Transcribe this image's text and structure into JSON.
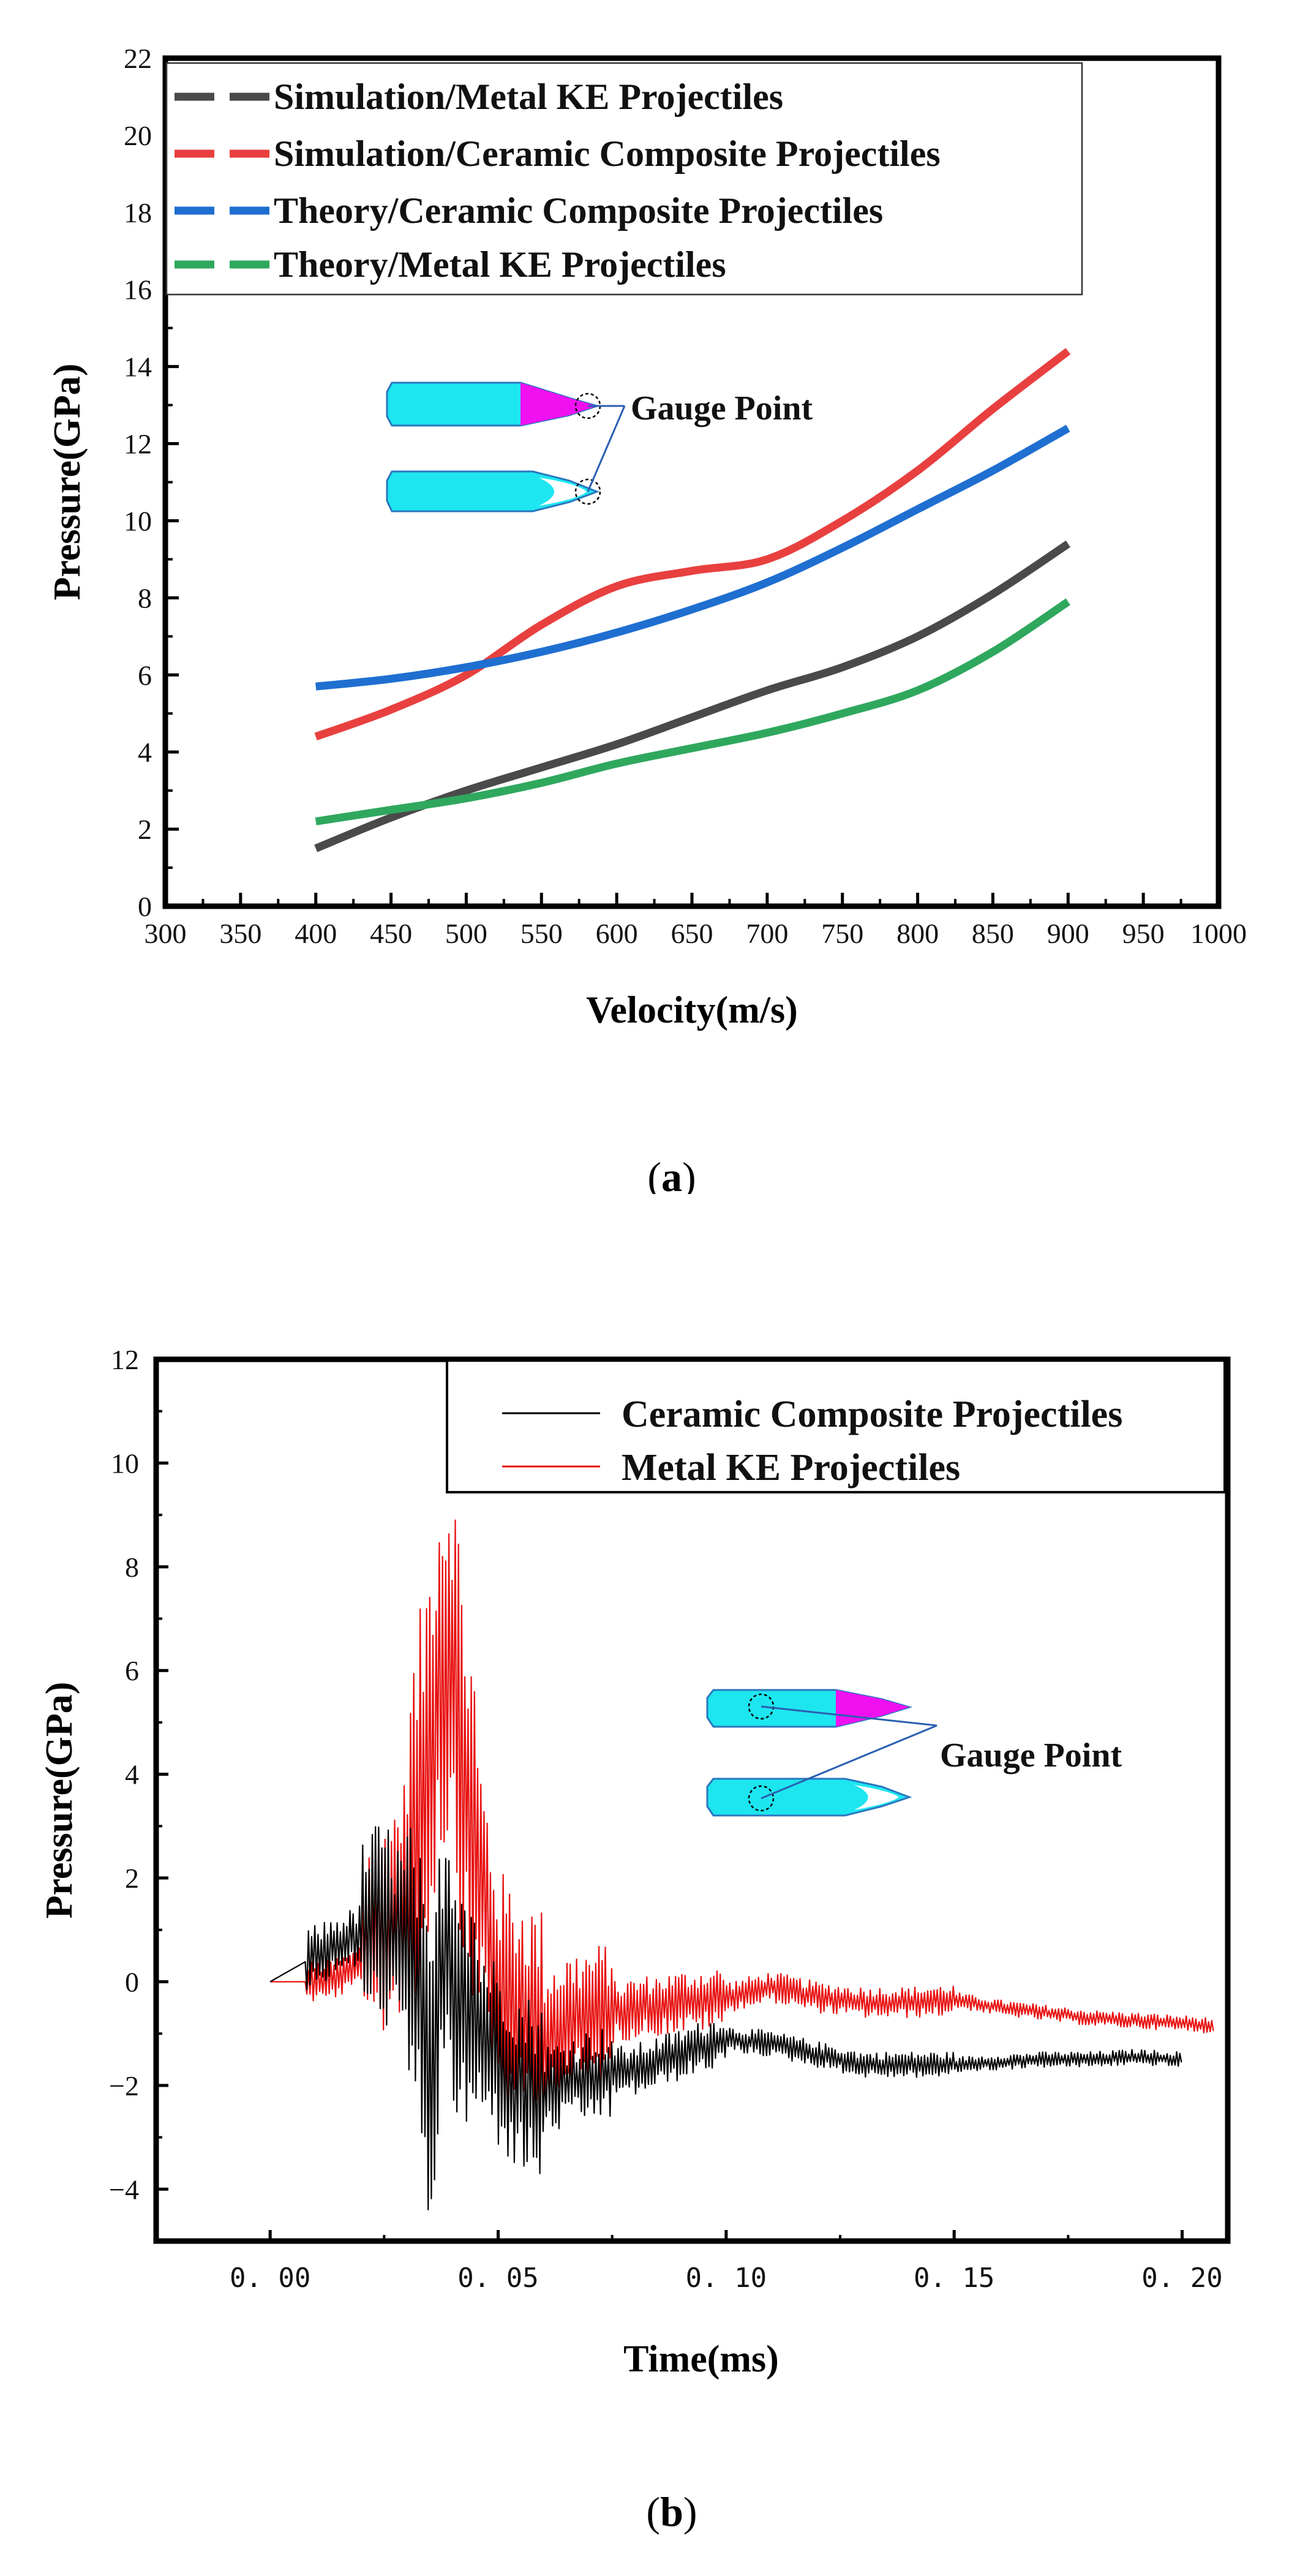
{
  "chart_data": [
    {
      "type": "line",
      "panel_label": "a",
      "title": "",
      "xlabel": "Velocity(m/s)",
      "ylabel": "Pressure(GPa)",
      "xlim": [
        300,
        1000
      ],
      "ylim": [
        0,
        22
      ],
      "xticks": [
        "300",
        "350",
        "400",
        "450",
        "500",
        "550",
        "600",
        "650",
        "700",
        "750",
        "800",
        "850",
        "900",
        "950",
        "1000"
      ],
      "yticks": [
        "0",
        "2",
        "4",
        "6",
        "8",
        "10",
        "12",
        "14",
        "16",
        "18",
        "20",
        "22"
      ],
      "annotation": "Gauge Point",
      "series": [
        {
          "name": "Simulation/Metal KE Projectiles",
          "color": "#4a4a4a",
          "x": [
            400,
            450,
            500,
            550,
            600,
            650,
            700,
            750,
            800,
            850,
            900
          ],
          "y": [
            1.5,
            2.3,
            3.0,
            3.6,
            4.2,
            4.9,
            5.6,
            6.2,
            7.0,
            8.1,
            9.4
          ]
        },
        {
          "name": "Simulation/Ceramic Composite Projectiles",
          "color": "#e8403f",
          "x": [
            400,
            450,
            500,
            550,
            600,
            650,
            700,
            750,
            800,
            850,
            900
          ],
          "y": [
            4.4,
            5.1,
            6.0,
            7.3,
            8.3,
            8.7,
            9.0,
            10.0,
            11.3,
            12.9,
            14.4
          ]
        },
        {
          "name": "Theory/Ceramic Composite Projectiles",
          "color": "#1f6fd1",
          "x": [
            400,
            450,
            500,
            550,
            600,
            650,
            700,
            750,
            800,
            850,
            900
          ],
          "y": [
            5.7,
            5.9,
            6.2,
            6.6,
            7.1,
            7.7,
            8.4,
            9.3,
            10.3,
            11.3,
            12.4
          ]
        },
        {
          "name": "Theory/Metal KE Projectiles",
          "color": "#2fa85e",
          "x": [
            400,
            450,
            500,
            550,
            600,
            650,
            700,
            750,
            800,
            850,
            900
          ],
          "y": [
            2.2,
            2.5,
            2.8,
            3.2,
            3.7,
            4.1,
            4.5,
            5.0,
            5.6,
            6.6,
            7.9
          ]
        }
      ]
    },
    {
      "type": "line",
      "panel_label": "b",
      "title": "",
      "xlabel": "Time(ms)",
      "ylabel": "Pressure(GPa)",
      "xlim": [
        -0.025,
        0.21
      ],
      "ylim": [
        -5,
        12
      ],
      "xticks": [
        "0. 00",
        "0. 05",
        "0. 10",
        "0. 15",
        "0. 20"
      ],
      "yticks": [
        "−4",
        "−2",
        "0",
        "2",
        "4",
        "6",
        "8",
        "10",
        "12"
      ],
      "annotation": "Gauge Point",
      "series": [
        {
          "name": "Ceramic Composite Projectiles",
          "color": "#000000",
          "x": [
            0.0,
            0.01,
            0.015,
            0.02,
            0.025,
            0.03,
            0.033,
            0.035,
            0.038,
            0.04,
            0.045,
            0.05,
            0.055,
            0.06,
            0.07,
            0.08,
            0.09,
            0.1,
            0.11,
            0.12,
            0.13,
            0.14,
            0.15,
            0.16,
            0.17,
            0.18,
            0.19,
            0.2
          ],
          "y": [
            0.0,
            0.5,
            0.7,
            0.9,
            1.2,
            0.5,
            -0.4,
            -2.2,
            0.6,
            0.2,
            -0.8,
            -1.4,
            -2.0,
            -2.1,
            -1.8,
            -1.7,
            -1.4,
            -1.1,
            -1.2,
            -1.4,
            -1.6,
            -1.6,
            -1.6,
            -1.55,
            -1.5,
            -1.5,
            -1.45,
            -1.5
          ]
        },
        {
          "name": "Metal KE Projectiles",
          "color": "#e81010",
          "x": [
            0.0,
            0.012,
            0.018,
            0.022,
            0.026,
            0.03,
            0.034,
            0.037,
            0.04,
            0.043,
            0.047,
            0.05,
            0.055,
            0.06,
            0.065,
            0.07,
            0.08,
            0.09,
            0.1,
            0.11,
            0.12,
            0.13,
            0.14,
            0.15,
            0.16,
            0.17,
            0.18,
            0.19,
            0.2,
            0.207
          ],
          "y": [
            0.0,
            0.0,
            0.2,
            0.7,
            1.2,
            1.8,
            4.0,
            6.0,
            6.4,
            3.5,
            1.5,
            -0.2,
            -0.6,
            -1.0,
            -0.8,
            -0.7,
            -0.5,
            -0.4,
            -0.3,
            -0.1,
            -0.3,
            -0.4,
            -0.4,
            -0.35,
            -0.5,
            -0.6,
            -0.7,
            -0.75,
            -0.8,
            -0.85
          ]
        }
      ]
    }
  ]
}
